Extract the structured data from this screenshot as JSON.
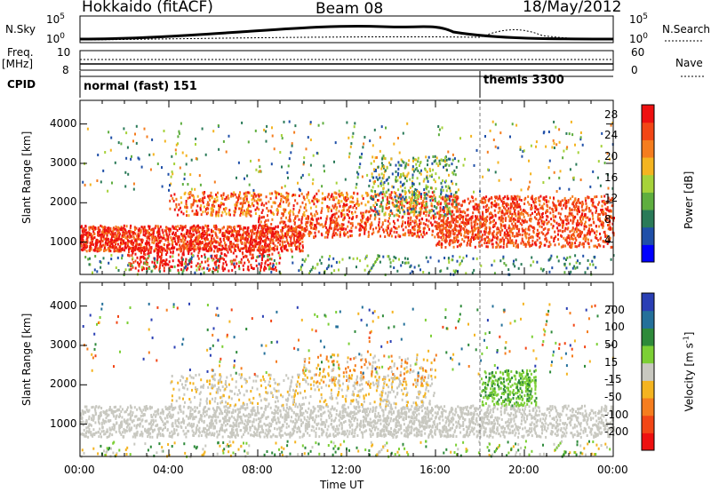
{
  "header": {
    "station": "Hokkaido (fitACF)",
    "beam": "Beam 08",
    "date": "18/May/2012"
  },
  "top_panel": {
    "nsky_label": "N.Sky",
    "nsky_ticks": [
      "10^5",
      "10^0"
    ],
    "nsearch_label": "N.Search",
    "nsearch_ticks": [
      "10^5",
      "10^0"
    ],
    "freq_label": "Freq.",
    "freq_unit": "[MHz]",
    "freq_ticks": [
      "10",
      "8"
    ],
    "nave_label": "Nave",
    "nave_ticks": [
      "60",
      "0"
    ],
    "cpid_label": "CPID",
    "modes": [
      {
        "name": "normal (fast) 151",
        "start": "00:00"
      },
      {
        "name": "themis 3300",
        "start": "18:00"
      }
    ]
  },
  "chart_data": [
    {
      "type": "heatmap",
      "title": "",
      "xlabel": "Time UT",
      "ylabel": "Slant Range [km]",
      "x_ticks": [
        "00:00",
        "04:00",
        "08:00",
        "12:00",
        "16:00",
        "20:00",
        "00:00"
      ],
      "xlim_hours": [
        0,
        24
      ],
      "y_ticks": [
        1000,
        2000,
        3000,
        4000
      ],
      "ylim": [
        180,
        4600
      ],
      "colorbar": {
        "label": "Power [dB]",
        "ticks": [
          4,
          8,
          12,
          16,
          20,
          24,
          28
        ],
        "range": [
          0,
          30
        ],
        "colors": [
          "#0000ff",
          "#1f4fa8",
          "#2a7a58",
          "#5fae3f",
          "#a6d23a",
          "#f4b420",
          "#f57d1e",
          "#f24616",
          "#ee1010"
        ]
      },
      "features": [
        {
          "desc_range_km": [
            800,
            1400
          ],
          "hours": [
            0,
            10
          ],
          "power_db": 28
        },
        {
          "desc_range_km": [
            1700,
            2300
          ],
          "hours": [
            4,
            16
          ],
          "power_db": 22
        },
        {
          "desc_range_km": [
            900,
            2200
          ],
          "hours": [
            16,
            24
          ],
          "power_db": 25
        }
      ]
    },
    {
      "type": "heatmap",
      "title": "",
      "xlabel": "Time UT",
      "ylabel": "Slant Range [km]",
      "x_ticks": [
        "00:00",
        "04:00",
        "08:00",
        "12:00",
        "16:00",
        "20:00",
        "00:00"
      ],
      "xlim_hours": [
        0,
        24
      ],
      "y_ticks": [
        1000,
        2000,
        3000,
        4000
      ],
      "ylim": [
        180,
        4600
      ],
      "colorbar": {
        "label": "Velocity [m s^-1]",
        "ticks": [
          200,
          100,
          50,
          15,
          -15,
          -50,
          -100,
          -200
        ],
        "range": [
          -250,
          250
        ],
        "colors": [
          "#2a3fb4",
          "#24709a",
          "#2e8a3a",
          "#7ccf35",
          "#c8c8c0",
          "#f4b420",
          "#f57d1e",
          "#f24616",
          "#ee1010"
        ]
      },
      "features": [
        {
          "desc_range_km": [
            700,
            1500
          ],
          "hours": [
            0,
            24
          ],
          "velocity": 0
        },
        {
          "desc_range_km": [
            1500,
            2400
          ],
          "hours": [
            18,
            20.5
          ],
          "velocity": 60
        }
      ]
    }
  ]
}
